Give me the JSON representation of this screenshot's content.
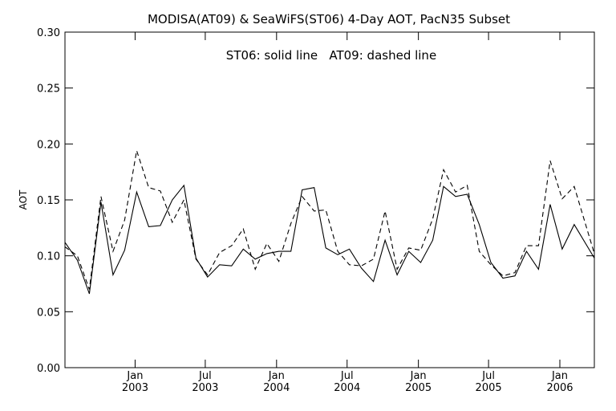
{
  "chart_data": {
    "type": "line",
    "title": "MODISA(AT09) & SeaWiFS(ST06) 4-Day AOT, PacN35 Subset",
    "annotation": "ST06: solid line   AT09: dashed line",
    "xlabel": "",
    "ylabel": "AOT",
    "ylim": [
      0.0,
      0.3
    ],
    "xlim": [
      "2002-07-04",
      "2006-03-31"
    ],
    "yticks": [
      "0.00",
      "0.05",
      "0.10",
      "0.15",
      "0.20",
      "0.25",
      "0.30"
    ],
    "xticks": [
      {
        "date": "2003-01-01",
        "month": "Jan",
        "year": "2003"
      },
      {
        "date": "2003-07-01",
        "month": "Jul",
        "year": "2003"
      },
      {
        "date": "2004-01-01",
        "month": "Jan",
        "year": "2004"
      },
      {
        "date": "2004-07-01",
        "month": "Jul",
        "year": "2004"
      },
      {
        "date": "2005-01-01",
        "month": "Jan",
        "year": "2005"
      },
      {
        "date": "2005-07-01",
        "month": "Jul",
        "year": "2005"
      },
      {
        "date": "2006-01-01",
        "month": "Jan",
        "year": "2006"
      }
    ],
    "grid": false,
    "legend": "none",
    "series": [
      {
        "name": "ST06",
        "style": "solid",
        "color": "#000000",
        "points": [
          [
            "2002-07-04",
            0.112
          ],
          [
            "2002-08-05",
            0.096
          ],
          [
            "2002-09-05",
            0.066
          ],
          [
            "2002-10-05",
            0.148
          ],
          [
            "2002-11-05",
            0.083
          ],
          [
            "2002-12-05",
            0.105
          ],
          [
            "2003-01-05",
            0.157
          ],
          [
            "2003-02-05",
            0.126
          ],
          [
            "2003-03-07",
            0.127
          ],
          [
            "2003-04-07",
            0.15
          ],
          [
            "2003-05-07",
            0.163
          ],
          [
            "2003-06-07",
            0.098
          ],
          [
            "2003-07-07",
            0.081
          ],
          [
            "2003-08-07",
            0.092
          ],
          [
            "2003-09-07",
            0.091
          ],
          [
            "2003-10-07",
            0.106
          ],
          [
            "2003-11-07",
            0.097
          ],
          [
            "2003-12-07",
            0.102
          ],
          [
            "2004-01-07",
            0.104
          ],
          [
            "2004-02-07",
            0.104
          ],
          [
            "2004-03-07",
            0.159
          ],
          [
            "2004-04-07",
            0.161
          ],
          [
            "2004-05-07",
            0.107
          ],
          [
            "2004-06-07",
            0.101
          ],
          [
            "2004-07-07",
            0.106
          ],
          [
            "2004-08-07",
            0.089
          ],
          [
            "2004-09-07",
            0.077
          ],
          [
            "2004-10-07",
            0.114
          ],
          [
            "2004-11-07",
            0.083
          ],
          [
            "2004-12-07",
            0.104
          ],
          [
            "2005-01-07",
            0.094
          ],
          [
            "2005-02-07",
            0.114
          ],
          [
            "2005-03-07",
            0.162
          ],
          [
            "2005-04-07",
            0.153
          ],
          [
            "2005-05-07",
            0.155
          ],
          [
            "2005-06-07",
            0.128
          ],
          [
            "2005-07-07",
            0.094
          ],
          [
            "2005-08-07",
            0.08
          ],
          [
            "2005-09-07",
            0.082
          ],
          [
            "2005-10-07",
            0.104
          ],
          [
            "2005-11-07",
            0.088
          ],
          [
            "2005-12-07",
            0.146
          ],
          [
            "2006-01-07",
            0.106
          ],
          [
            "2006-02-07",
            0.128
          ],
          [
            "2006-03-31",
            0.098
          ]
        ]
      },
      {
        "name": "AT09",
        "style": "dashed",
        "color": "#000000",
        "points": [
          [
            "2002-07-04",
            0.108
          ],
          [
            "2002-08-05",
            0.1
          ],
          [
            "2002-09-05",
            0.07
          ],
          [
            "2002-10-05",
            0.153
          ],
          [
            "2002-11-05",
            0.104
          ],
          [
            "2002-12-05",
            0.132
          ],
          [
            "2003-01-05",
            0.194
          ],
          [
            "2003-02-05",
            0.161
          ],
          [
            "2003-03-07",
            0.158
          ],
          [
            "2003-04-07",
            0.13
          ],
          [
            "2003-05-07",
            0.15
          ],
          [
            "2003-06-07",
            0.097
          ],
          [
            "2003-07-07",
            0.083
          ],
          [
            "2003-08-07",
            0.103
          ],
          [
            "2003-09-07",
            0.109
          ],
          [
            "2003-10-07",
            0.124
          ],
          [
            "2003-11-07",
            0.088
          ],
          [
            "2003-12-07",
            0.111
          ],
          [
            "2004-01-07",
            0.095
          ],
          [
            "2004-02-07",
            0.129
          ],
          [
            "2004-03-07",
            0.153
          ],
          [
            "2004-04-07",
            0.14
          ],
          [
            "2004-05-07",
            0.141
          ],
          [
            "2004-06-07",
            0.104
          ],
          [
            "2004-07-07",
            0.092
          ],
          [
            "2004-08-07",
            0.091
          ],
          [
            "2004-09-07",
            0.097
          ],
          [
            "2004-10-07",
            0.14
          ],
          [
            "2004-11-07",
            0.088
          ],
          [
            "2004-12-07",
            0.107
          ],
          [
            "2005-01-07",
            0.105
          ],
          [
            "2005-02-07",
            0.133
          ],
          [
            "2005-03-07",
            0.177
          ],
          [
            "2005-04-07",
            0.157
          ],
          [
            "2005-05-07",
            0.163
          ],
          [
            "2005-06-07",
            0.104
          ],
          [
            "2005-07-07",
            0.092
          ],
          [
            "2005-08-07",
            0.082
          ],
          [
            "2005-09-07",
            0.085
          ],
          [
            "2005-10-07",
            0.109
          ],
          [
            "2005-11-07",
            0.109
          ],
          [
            "2005-12-07",
            0.185
          ],
          [
            "2006-01-07",
            0.151
          ],
          [
            "2006-02-07",
            0.162
          ],
          [
            "2006-03-31",
            0.102
          ]
        ]
      }
    ]
  }
}
